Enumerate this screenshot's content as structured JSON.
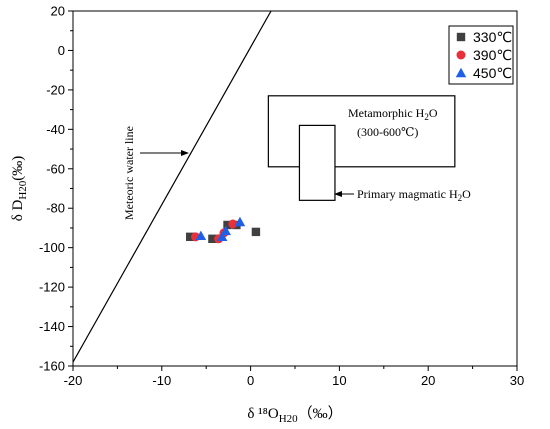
{
  "chart_data": {
    "type": "scatter",
    "xlabel": "δ ¹⁸O",
    "xlabel_sub": "H20",
    "xlabel_unit": "（‰）",
    "ylabel": "δ D",
    "ylabel_sub": "H20",
    "ylabel_unit": "(‰)",
    "xlim": [
      -20,
      30
    ],
    "ylim": [
      -160,
      20
    ],
    "xticks": [
      -20,
      -10,
      0,
      10,
      20,
      30
    ],
    "yticks": [
      -160,
      -140,
      -120,
      -100,
      -80,
      -60,
      -40,
      -20,
      0,
      20
    ],
    "grid": false,
    "legend_position": "top-right",
    "series": [
      {
        "name": "330℃",
        "marker": "square",
        "color": "#404040",
        "points": [
          [
            -6.8,
            -94.5
          ],
          [
            -4.3,
            -95.5
          ],
          [
            -2.6,
            -88.5
          ],
          [
            -1.6,
            -88.5
          ],
          [
            0.6,
            -92.0
          ]
        ]
      },
      {
        "name": "390℃",
        "marker": "circle",
        "color": "#e8303a",
        "points": [
          [
            -6.2,
            -94.5
          ],
          [
            -3.6,
            -95.5
          ],
          [
            -3.0,
            -92.5
          ],
          [
            -2.0,
            -88.0
          ]
        ]
      },
      {
        "name": "450℃",
        "marker": "triangle",
        "color": "#1f5fe8",
        "points": [
          [
            -5.6,
            -94.0
          ],
          [
            -3.2,
            -94.5
          ],
          [
            -2.8,
            -91.5
          ],
          [
            -1.2,
            -87.0
          ]
        ]
      }
    ],
    "meteoric_line": {
      "label": "Meteoric water line",
      "x1": -20,
      "y1": -158,
      "x2": 2.3,
      "y2": 20
    },
    "metamorphic_box": {
      "label": "Metamorphic H",
      "label_sub": "2",
      "label_tail": "O",
      "label2": "(300-600℃)",
      "x": [
        2,
        23
      ],
      "y": [
        -59,
        -23
      ]
    },
    "magmatic_box": {
      "label": "Primary magmatic H",
      "label_sub": "2",
      "label_tail": "O",
      "x": [
        5.5,
        9.5
      ],
      "y": [
        -76,
        -38
      ]
    }
  }
}
